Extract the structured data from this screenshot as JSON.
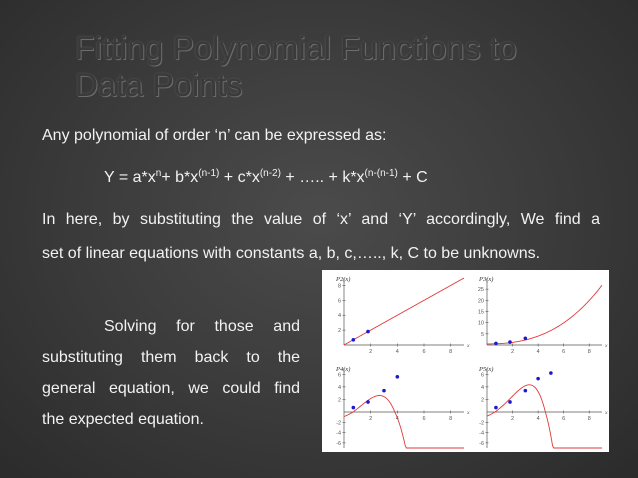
{
  "slide": {
    "title_line1": "Fitting Polynomial Functions to",
    "title_line2": "Data Points",
    "intro": "Any polynomial of order ‘n’ can be expressed as:",
    "equation": {
      "p1": "Y = a*x",
      "s1": "n",
      "p2": "+ b*x",
      "s2": "(n-1)",
      "p3": " + c*x",
      "s3": "(n-2)",
      "p4": " + ….. + k*x",
      "s4": "(n-(n-1)",
      "p5": " + C"
    },
    "para_line1": "In here, by substituting the value of ‘x’ and ‘Y’ accordingly, We find a",
    "para_line2": "set of linear equations with constants a, b, c,….., k, C to be unknowns.",
    "left_lines": [
      "Solving for those and",
      "substituting them back to the",
      "general equation, we could find",
      "the expected equation."
    ]
  },
  "chart_data": [
    {
      "type": "line",
      "title": "P2(x)",
      "xlabel": "x",
      "xticks": [
        "2",
        "4",
        "6",
        "8"
      ],
      "yticks": [
        "2",
        "4",
        "6",
        "8"
      ],
      "xlim": [
        0,
        9
      ],
      "ylim": [
        0,
        9
      ],
      "points": [
        [
          0.7,
          0.7
        ],
        [
          1.8,
          1.8
        ]
      ],
      "curve_color": "#e23a3a",
      "point_color": "#1a1ad0"
    },
    {
      "type": "line",
      "title": "P3(x)",
      "xlabel": "x",
      "xticks": [
        "2",
        "4",
        "6",
        "8"
      ],
      "yticks": [
        "5",
        "10",
        "15",
        "20",
        "25"
      ],
      "xlim": [
        0,
        9
      ],
      "ylim": [
        0,
        30
      ],
      "points": [
        [
          0.7,
          0.7
        ],
        [
          1.8,
          1.3
        ],
        [
          3,
          3
        ]
      ],
      "curve_color": "#e23a3a",
      "point_color": "#1a1ad0"
    },
    {
      "type": "line",
      "title": "P4(x)",
      "xlabel": "x",
      "xticks": [
        "2",
        "4",
        "6",
        "8"
      ],
      "yticks": [
        "-6",
        "-4",
        "-2",
        "2",
        "4",
        "6"
      ],
      "xlim": [
        0,
        9
      ],
      "ylim": [
        -7,
        7
      ],
      "points": [
        [
          0.7,
          0.7
        ],
        [
          1.8,
          1.6
        ],
        [
          3,
          3.4
        ],
        [
          4,
          5.6
        ]
      ],
      "curve_color": "#e23a3a",
      "point_color": "#1a1ad0"
    },
    {
      "type": "line",
      "title": "P5(x)",
      "xlabel": "x",
      "xticks": [
        "2",
        "4",
        "6",
        "8"
      ],
      "yticks": [
        "-6",
        "-4",
        "-2",
        "2",
        "4",
        "6"
      ],
      "xlim": [
        0,
        9
      ],
      "ylim": [
        -7,
        7
      ],
      "points": [
        [
          0.7,
          0.7
        ],
        [
          1.8,
          1.6
        ],
        [
          3,
          3.4
        ],
        [
          4,
          5.3
        ],
        [
          5,
          6.2
        ]
      ],
      "curve_color": "#e23a3a",
      "point_color": "#1a1ad0"
    }
  ]
}
